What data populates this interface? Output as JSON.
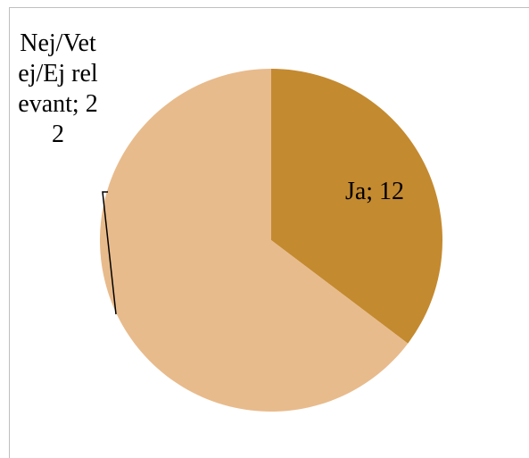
{
  "chart_data": {
    "type": "pie",
    "values": [
      12,
      22
    ],
    "value_labels": [
      "Ja; 12",
      "Nej/Vet ej/Ej relevant; 22"
    ],
    "colors": [
      "#c48a30",
      "#e8bb8c"
    ]
  }
}
